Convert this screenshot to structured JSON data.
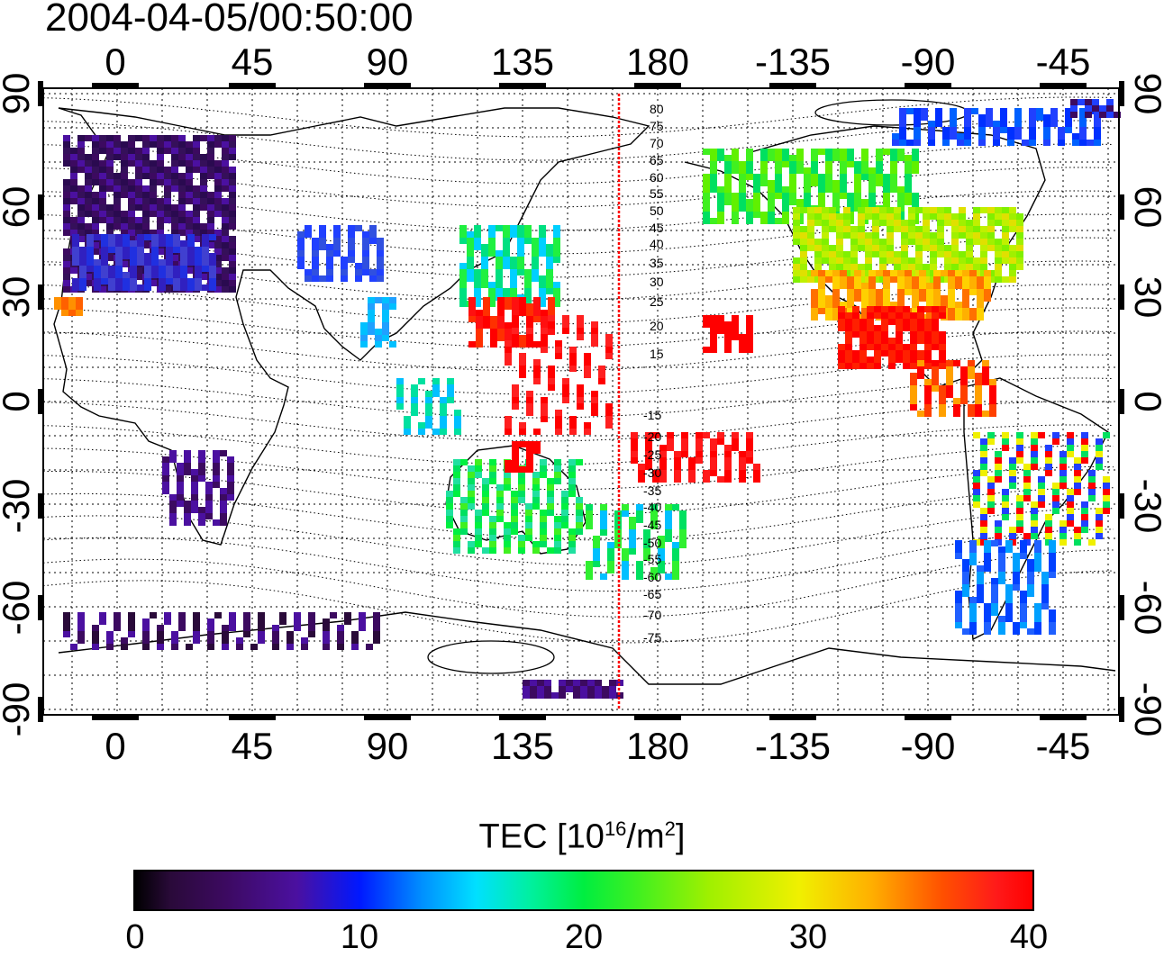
{
  "title": "2004-04-05/00:50:00",
  "map": {
    "lon_tick_labels": [
      "0",
      "45",
      "90",
      "135",
      "180",
      "-135",
      "-90",
      "-45"
    ],
    "lat_tick_labels": [
      "90",
      "60",
      "30",
      "0",
      "-30",
      "-60",
      "-90"
    ],
    "contour_labels_north": [
      "80",
      "75",
      "70",
      "65",
      "60",
      "55",
      "50",
      "45",
      "40",
      "35",
      "30",
      "25",
      "20",
      "15"
    ],
    "contour_labels_south": [
      "-15",
      "-20",
      "-25",
      "-30",
      "-35",
      "-40",
      "-45",
      "-50",
      "-55",
      "-60",
      "-65",
      "-70",
      "-75"
    ],
    "terminator_line_color": "#ff0000"
  },
  "colorbar": {
    "title_main": "TEC  [10",
    "title_sup1": "16",
    "title_mid": "/m",
    "title_sup2": "2",
    "title_end": "]",
    "labels": [
      "0",
      "10",
      "20",
      "30",
      "40"
    ]
  }
}
